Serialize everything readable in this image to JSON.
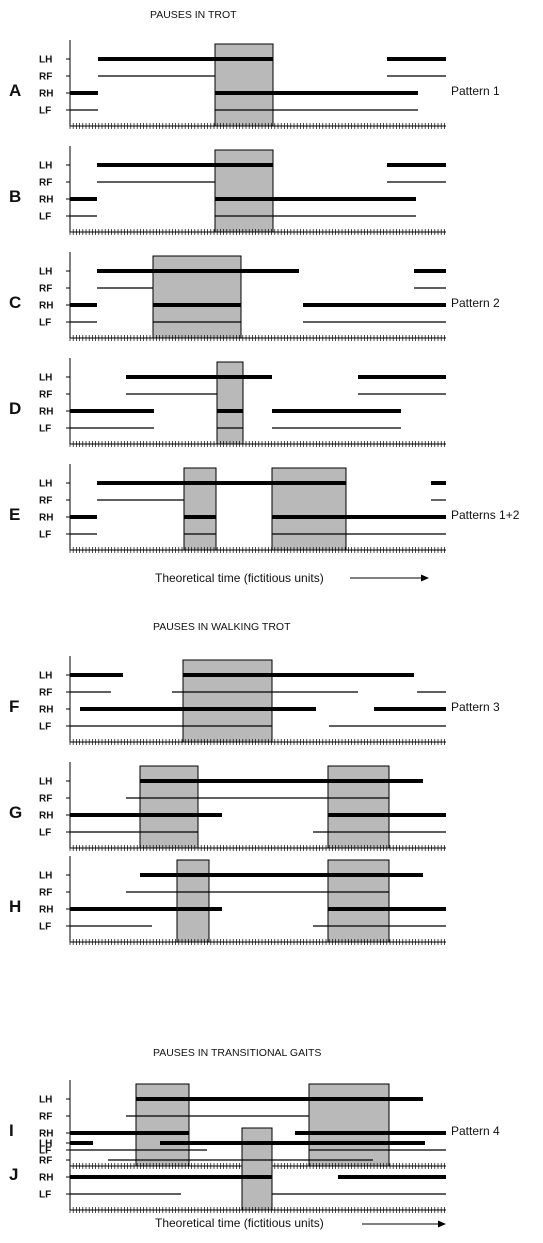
{
  "section_titles": [
    "PAUSES IN TROT",
    "PAUSES IN WALKING TROT",
    "PAUSES IN TRANSITIONAL GAITS"
  ],
  "xaxis_label": "Theoretical time (fictitious units)",
  "legs": [
    "LH",
    "RF",
    "RH",
    "LF"
  ],
  "colors": {
    "pause": "#b9b9b9",
    "line": "#000000"
  },
  "panels": [
    {
      "id": "A",
      "label": "A",
      "pattern": "Pattern 1",
      "pauses": [
        [
          215,
          273
        ]
      ],
      "stance": {
        "LH": [
          [
            98,
            273
          ],
          [
            387,
            446
          ]
        ],
        "RF": [
          [
            98,
            215
          ],
          [
            387,
            446
          ]
        ],
        "RH": [
          [
            70,
            98
          ],
          [
            215,
            418
          ]
        ],
        "LF": [
          [
            70,
            98
          ],
          [
            215,
            418
          ]
        ]
      }
    },
    {
      "id": "B",
      "label": "B",
      "pattern": "",
      "pauses": [
        [
          215,
          273
        ]
      ],
      "stance": {
        "LH": [
          [
            97,
            273
          ],
          [
            387,
            446
          ]
        ],
        "RF": [
          [
            97,
            215
          ],
          [
            387,
            446
          ]
        ],
        "RH": [
          [
            70,
            97
          ],
          [
            215,
            416
          ]
        ],
        "LF": [
          [
            70,
            97
          ],
          [
            215,
            416
          ]
        ]
      }
    },
    {
      "id": "C",
      "label": "C",
      "pattern": "Pattern 2",
      "pauses": [
        [
          153,
          241
        ]
      ],
      "stance": {
        "LH": [
          [
            97,
            299
          ],
          [
            414,
            446
          ]
        ],
        "RF": [
          [
            97,
            153
          ],
          [
            414,
            446
          ]
        ],
        "RH": [
          [
            70,
            97
          ],
          [
            153,
            241
          ],
          [
            303,
            446
          ]
        ],
        "LF": [
          [
            70,
            97
          ],
          [
            153,
            241
          ],
          [
            303,
            446
          ]
        ]
      }
    },
    {
      "id": "D",
      "label": "D",
      "pattern": "",
      "pauses": [
        [
          217,
          243
        ]
      ],
      "stance": {
        "LH": [
          [
            126,
            272
          ],
          [
            358,
            446
          ]
        ],
        "RF": [
          [
            126,
            217
          ],
          [
            358,
            446
          ]
        ],
        "RH": [
          [
            70,
            154
          ],
          [
            217,
            243
          ],
          [
            272,
            401
          ]
        ],
        "LF": [
          [
            70,
            154
          ],
          [
            217,
            243
          ],
          [
            272,
            401
          ]
        ]
      }
    },
    {
      "id": "E",
      "label": "E",
      "pattern": "Patterns 1+2",
      "pauses": [
        [
          184,
          216
        ],
        [
          272,
          346
        ]
      ],
      "stance": {
        "LH": [
          [
            97,
            346
          ],
          [
            431,
            446
          ]
        ],
        "RF": [
          [
            97,
            184
          ],
          [
            431,
            446
          ]
        ],
        "RH": [
          [
            70,
            97
          ],
          [
            184,
            216
          ],
          [
            272,
            446
          ]
        ],
        "LF": [
          [
            70,
            97
          ],
          [
            184,
            216
          ],
          [
            272,
            446
          ]
        ]
      }
    },
    {
      "id": "F",
      "label": "F",
      "pattern": "Pattern 3",
      "pauses": [
        [
          183,
          272
        ]
      ],
      "stance": {
        "LH": [
          [
            70,
            123
          ],
          [
            183,
            414
          ]
        ],
        "RF": [
          [
            70,
            111
          ],
          [
            172,
            358
          ],
          [
            417,
            446
          ]
        ],
        "RH": [
          [
            80,
            316
          ],
          [
            374,
            446
          ]
        ],
        "LF": [
          [
            70,
            272
          ],
          [
            329,
            446
          ]
        ]
      }
    },
    {
      "id": "G",
      "label": "G",
      "pattern": "",
      "pauses": [
        [
          140,
          198
        ],
        [
          328,
          389
        ]
      ],
      "stance": {
        "LH": [
          [
            140,
            423
          ]
        ],
        "RF": [
          [
            126,
            389
          ]
        ],
        "RH": [
          [
            70,
            222
          ],
          [
            328,
            446
          ]
        ],
        "LF": [
          [
            70,
            198
          ],
          [
            313,
            446
          ]
        ]
      }
    },
    {
      "id": "H",
      "label": "H",
      "pattern": "",
      "pauses": [
        [
          177,
          209
        ],
        [
          328,
          389
        ]
      ],
      "stance": {
        "LH": [
          [
            140,
            423
          ]
        ],
        "RF": [
          [
            126,
            389
          ]
        ],
        "RH": [
          [
            70,
            222
          ],
          [
            328,
            446
          ]
        ],
        "LF": [
          [
            70,
            152
          ],
          [
            313,
            446
          ]
        ]
      }
    },
    {
      "id": "I",
      "label": "I",
      "pattern": "Pattern 4",
      "pauses": [
        [
          136,
          189
        ],
        [
          309,
          389
        ]
      ],
      "stance": {
        "LH": [
          [
            136,
            423
          ]
        ],
        "RF": [
          [
            126,
            309
          ]
        ],
        "RH": [
          [
            70,
            189
          ],
          [
            295,
            446
          ]
        ],
        "LF": [
          [
            70,
            207
          ],
          [
            309,
            446
          ]
        ]
      }
    },
    {
      "id": "J",
      "label": "J",
      "pattern": "",
      "pauses": [
        [
          242,
          272
        ]
      ],
      "stance": {
        "LH": [
          [
            70,
            93
          ],
          [
            160,
            425
          ]
        ],
        "RF": [
          [
            108,
            373
          ]
        ],
        "RH": [
          [
            70,
            272
          ],
          [
            338,
            446
          ]
        ],
        "LF": [
          [
            70,
            181
          ],
          [
            272,
            446
          ]
        ]
      }
    }
  ]
}
